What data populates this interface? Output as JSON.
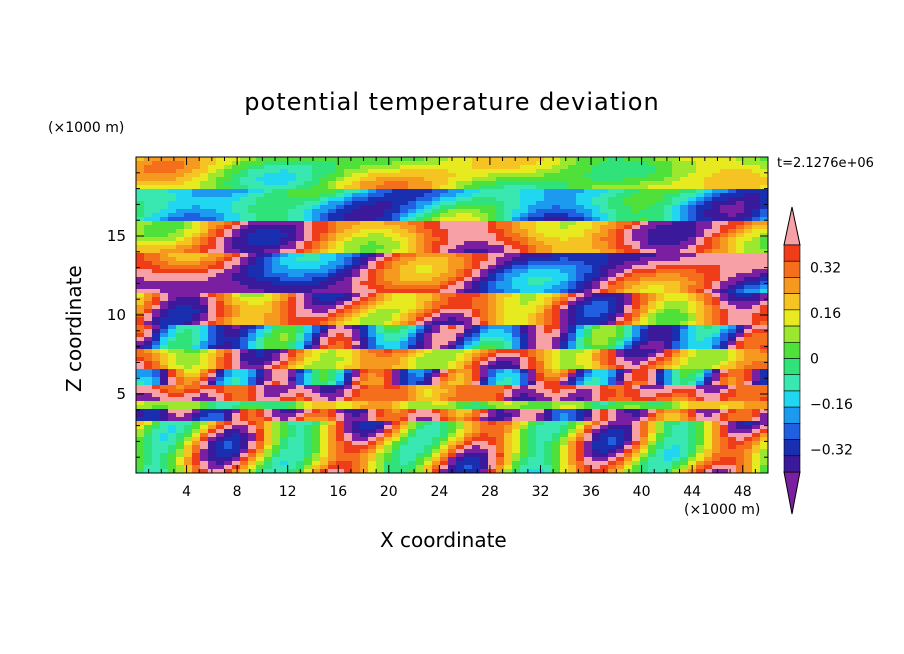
{
  "chart_data": {
    "type": "heatmap",
    "title": "potential temperature deviation",
    "xlabel": "X coordinate",
    "ylabel": "Z coordinate",
    "x_unit": "(×1000 m)",
    "y_unit": "(×1000 m)",
    "time_label": "t=2.1276e+06",
    "xlim": [
      0,
      50
    ],
    "ylim": [
      0,
      20
    ],
    "x_ticks": [
      "4",
      "8",
      "12",
      "16",
      "20",
      "24",
      "28",
      "32",
      "36",
      "40",
      "44",
      "48"
    ],
    "x_tick_values": [
      4,
      8,
      12,
      16,
      20,
      24,
      28,
      32,
      36,
      40,
      44,
      48
    ],
    "y_ticks": [
      "5",
      "10",
      "15"
    ],
    "y_tick_values": [
      5,
      10,
      15
    ],
    "colorbar": {
      "levels": [
        -0.4,
        -0.36,
        -0.32,
        -0.28,
        -0.24,
        -0.2,
        -0.16,
        -0.12,
        -0.08,
        -0.04,
        0,
        0.04,
        0.08,
        0.12,
        0.16,
        0.2,
        0.24,
        0.28,
        0.32,
        0.36,
        0.4
      ],
      "labels": [
        "0.32",
        "0.16",
        "0",
        "−0.16",
        "−0.32"
      ],
      "label_values": [
        0.32,
        0.16,
        0,
        -0.16,
        -0.32
      ],
      "colors": [
        "#7B1FA2",
        "#3A1A9A",
        "#1A2FB0",
        "#1F5FE0",
        "#1B9AF0",
        "#21D6F0",
        "#38E8B0",
        "#2FE37A",
        "#4FE03A",
        "#9BE82E",
        "#E8EA20",
        "#F5C322",
        "#F59A1F",
        "#F56E1C",
        "#EF3D19",
        "#F7A0A6"
      ],
      "extend": "both"
    }
  }
}
